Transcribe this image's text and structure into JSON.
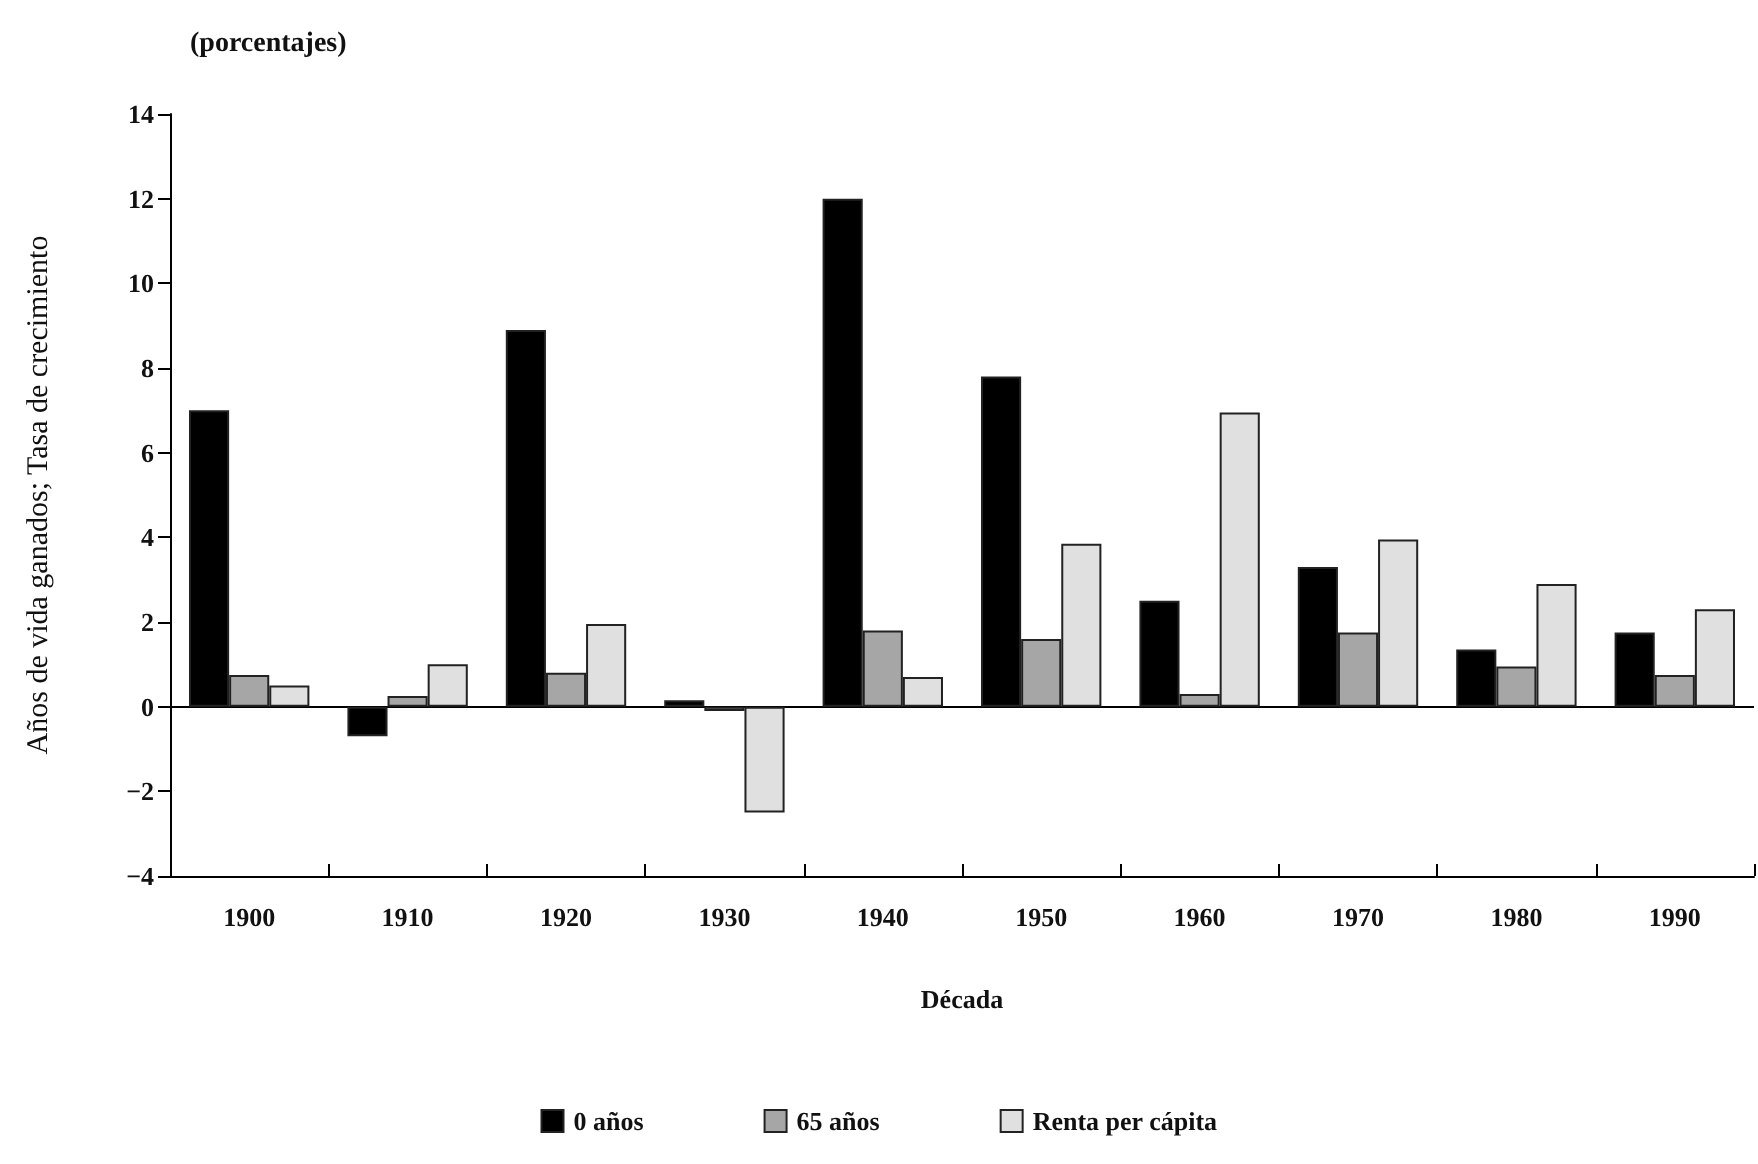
{
  "chart_data": {
    "type": "bar",
    "title": "(porcentajes)",
    "xlabel": "Década",
    "ylabel": "Años de vida ganados; Tasa de crecimiento",
    "categories": [
      "1900",
      "1910",
      "1920",
      "1930",
      "1940",
      "1950",
      "1960",
      "1970",
      "1980",
      "1990"
    ],
    "series": [
      {
        "name": "0 años",
        "color": "#000000",
        "values": [
          7.0,
          -0.7,
          8.9,
          0.15,
          12.0,
          7.8,
          2.5,
          3.3,
          1.35,
          1.75
        ]
      },
      {
        "name": "65 años",
        "color": "#a6a6a6",
        "values": [
          0.75,
          0.25,
          0.8,
          -0.1,
          1.8,
          1.6,
          0.3,
          1.75,
          0.95,
          0.75
        ]
      },
      {
        "name": "Renta per cápita",
        "color": "#e0e0e0",
        "values": [
          0.5,
          1.0,
          1.95,
          -2.5,
          0.7,
          3.85,
          6.95,
          3.95,
          2.9,
          2.3
        ]
      }
    ],
    "ylim": [
      -4,
      14
    ],
    "yticks": [
      -4,
      -2,
      0,
      2,
      4,
      6,
      8,
      10,
      12,
      14
    ],
    "legend": "bottom"
  }
}
